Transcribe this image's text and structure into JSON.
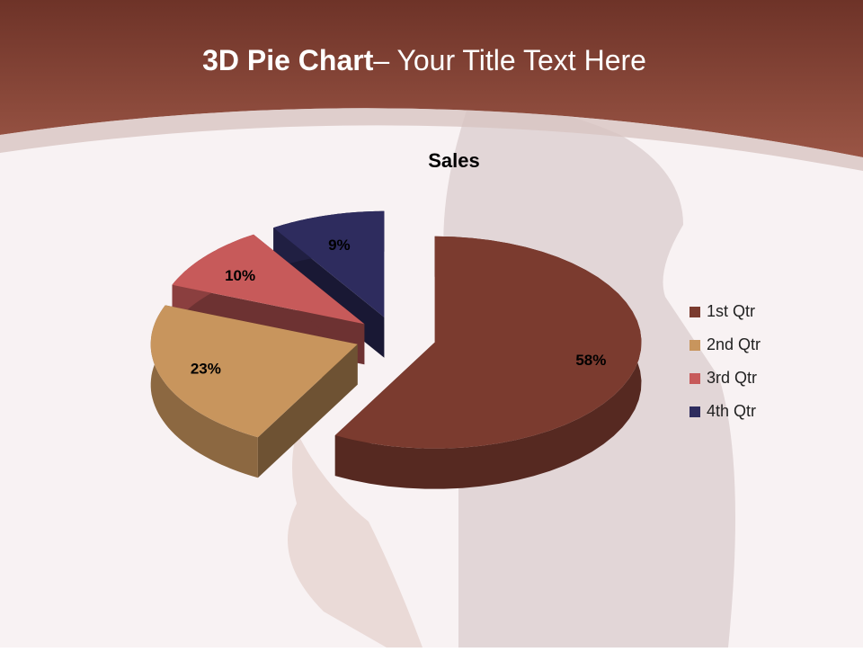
{
  "slide": {
    "title_bold": "3D Pie Chart",
    "title_rest": "– Your Title Text Here"
  },
  "chart_data": {
    "type": "pie",
    "title": "Sales",
    "categories": [
      "1st Qtr",
      "2nd Qtr",
      "3rd Qtr",
      "4th Qtr"
    ],
    "values": [
      58,
      23,
      10,
      9
    ],
    "value_labels": [
      "58%",
      "23%",
      "10%",
      "9%"
    ],
    "colors": [
      "#7b3b2f",
      "#c8955d",
      "#c75a5a",
      "#2e2c5e"
    ],
    "legend": "right"
  }
}
